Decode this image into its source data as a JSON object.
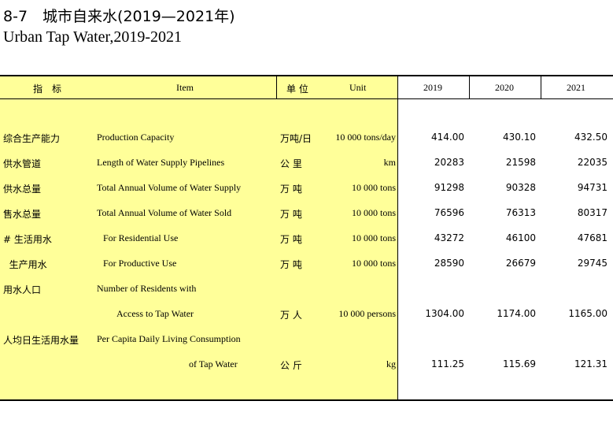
{
  "title": {
    "cn": "8-7　城市自来水(2019—2021年)",
    "en": "Urban Tap Water,2019-2021"
  },
  "header": {
    "indicator_cn": "指　标",
    "item": "Item",
    "unit_cn": "单 位",
    "unit_en": "Unit",
    "y2019": "2019",
    "y2020": "2020",
    "y2021": "2021"
  },
  "rows": [
    {
      "cn": "综合生产能力",
      "en": "Production Capacity",
      "unit_cn": "万吨/日",
      "unit_en": "10 000 tons/day",
      "v2019": "414.00",
      "v2020": "430.10",
      "v2021": "432.50"
    },
    {
      "cn": "供水管道",
      "en": "Length of Water Supply Pipelines",
      "unit_cn": "公 里",
      "unit_en": "km",
      "v2019": "20283",
      "v2020": "21598",
      "v2021": "22035"
    },
    {
      "cn": "供水总量",
      "en": "Total Annual Volume of Water Supply",
      "unit_cn": "万 吨",
      "unit_en": "10 000 tons",
      "v2019": "91298",
      "v2020": "90328",
      "v2021": "94731"
    },
    {
      "cn": "售水总量",
      "en": "Total Annual Volume of Water Sold",
      "unit_cn": "万 吨",
      "unit_en": "10 000 tons",
      "v2019": "76596",
      "v2020": "76313",
      "v2021": "80317"
    },
    {
      "cn": "# 生活用水",
      "en": "For Residential Use",
      "unit_cn": "万 吨",
      "unit_en": "10 000 tons",
      "v2019": "43272",
      "v2020": "46100",
      "v2021": "47681"
    },
    {
      "cn": "  生产用水",
      "en": "For Productive Use",
      "unit_cn": "万 吨",
      "unit_en": "10 000 tons",
      "v2019": "28590",
      "v2020": "26679",
      "v2021": "29745"
    },
    {
      "cn": "用水人口",
      "en": "Number of Residents with"
    },
    {
      "en": "Access to Tap Water",
      "unit_cn": "万 人",
      "unit_en": "10 000 persons",
      "v2019": "1304.00",
      "v2020": "1174.00",
      "v2021": "1165.00"
    },
    {
      "cn": "人均日生活用水量",
      "en": "Per Capita Daily Living Consumption"
    },
    {
      "en": "of Tap Water",
      "unit_cn": "公 斤",
      "unit_en": "kg",
      "v2019": "111.25",
      "v2020": "115.69",
      "v2021": "121.31"
    }
  ]
}
